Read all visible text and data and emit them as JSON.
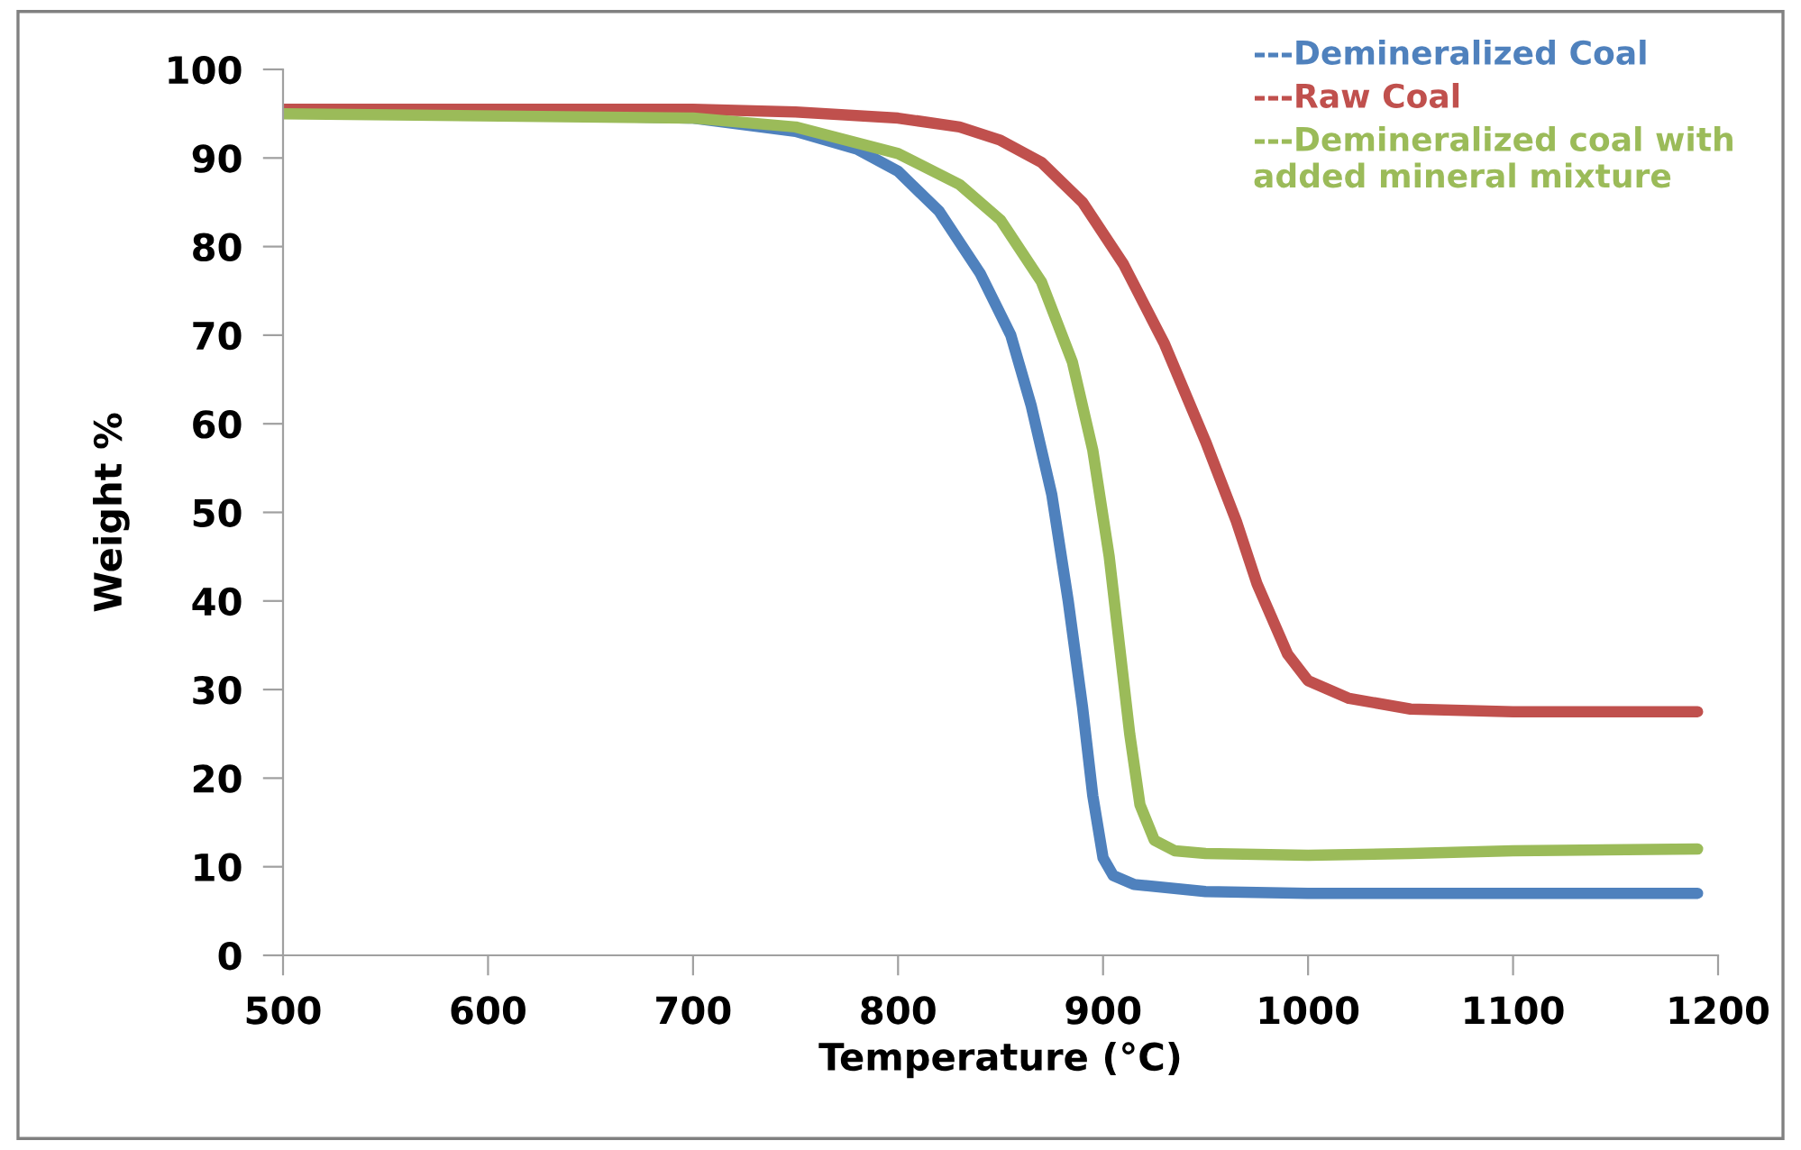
{
  "chart_data": {
    "type": "line",
    "xlabel": "Temperature (°C)",
    "ylabel": "Weight %",
    "xlim": [
      500,
      1200
    ],
    "xticks": [
      500,
      600,
      700,
      800,
      900,
      1000,
      1100,
      1200
    ],
    "ylim": [
      0,
      100
    ],
    "yticks": [
      0,
      10,
      20,
      30,
      40,
      50,
      60,
      70,
      80,
      90,
      100
    ],
    "grid": false,
    "legend": "top right",
    "marker": "none",
    "line_style": "solid",
    "series": [
      {
        "name": "---Demineralized Coal",
        "color": "#4f81bd",
        "x": [
          500,
          600,
          700,
          750,
          780,
          800,
          820,
          840,
          855,
          865,
          875,
          883,
          890,
          895,
          900,
          905,
          915,
          950,
          1000,
          1100,
          1190
        ],
        "values": [
          95.5,
          95,
          94.5,
          93,
          91,
          88.5,
          84,
          77,
          70,
          62,
          52,
          40,
          28,
          18,
          11,
          9,
          8,
          7.2,
          7,
          7,
          7
        ]
      },
      {
        "name": "---Raw Coal",
        "color": "#c0504d",
        "x": [
          500,
          700,
          750,
          800,
          830,
          850,
          870,
          890,
          910,
          930,
          950,
          965,
          975,
          990,
          1000,
          1020,
          1050,
          1100,
          1190
        ],
        "values": [
          95.5,
          95.5,
          95.2,
          94.5,
          93.5,
          92,
          89.5,
          85,
          78,
          69,
          58,
          49,
          42,
          34,
          31,
          29,
          27.8,
          27.5,
          27.5
        ]
      },
      {
        "name": "---Demineralized coal with added mineral mixture",
        "color": "#9bbb59",
        "x": [
          500,
          700,
          750,
          800,
          830,
          850,
          870,
          885,
          895,
          903,
          908,
          913,
          918,
          925,
          935,
          950,
          1000,
          1050,
          1100,
          1190
        ],
        "values": [
          95,
          94.5,
          93.5,
          90.5,
          87,
          83,
          76,
          67,
          57,
          45,
          35,
          25,
          17,
          13,
          11.8,
          11.5,
          11.3,
          11.5,
          11.8,
          12
        ]
      }
    ]
  }
}
